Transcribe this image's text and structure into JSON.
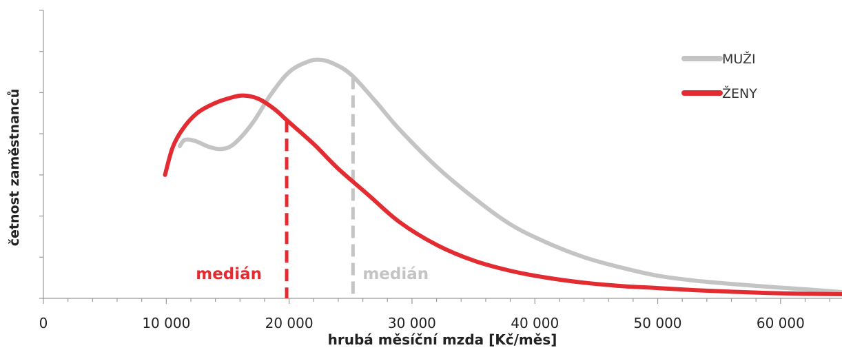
{
  "chart_data": {
    "type": "line",
    "xlabel": "hrubá měsíční mzda [Kč/měs]",
    "ylabel": "četnost zaměstnanců",
    "xlim": [
      0,
      65000
    ],
    "ylim": [
      0,
      7
    ],
    "x_ticks": [
      0,
      10000,
      20000,
      30000,
      40000,
      50000,
      60000
    ],
    "x_tick_labels": [
      "0",
      "10 000",
      "20 000",
      "30 000",
      "40 000",
      "50 000",
      "60 000"
    ],
    "y_tick_labels_shown": false,
    "grid": false,
    "legend_position": "top-right",
    "series": [
      {
        "name": "MUŽI",
        "color": "#c4c4c4",
        "x": [
          11100,
          11500,
          12300,
          13500,
          14500,
          15500,
          17000,
          18500,
          20000,
          21500,
          22500,
          23500,
          25000,
          27000,
          29000,
          32000,
          35000,
          38000,
          41000,
          44000,
          47000,
          50000,
          53000,
          56000,
          59000,
          62000,
          65000
        ],
        "y": [
          3.7,
          3.85,
          3.83,
          3.68,
          3.63,
          3.75,
          4.25,
          4.95,
          5.5,
          5.75,
          5.8,
          5.72,
          5.45,
          4.8,
          4.1,
          3.2,
          2.45,
          1.8,
          1.35,
          1.0,
          0.75,
          0.55,
          0.43,
          0.35,
          0.28,
          0.22,
          0.15
        ]
      },
      {
        "name": "ŽENY",
        "color": "#e32c31",
        "x": [
          9900,
          10500,
          11300,
          12500,
          14000,
          15300,
          16300,
          17500,
          18800,
          20000,
          22000,
          24000,
          26500,
          29000,
          32000,
          35000,
          38000,
          41000,
          44000,
          47000,
          50000,
          53000,
          56000,
          59000,
          62000,
          65000
        ],
        "y": [
          3.0,
          3.65,
          4.1,
          4.5,
          4.75,
          4.88,
          4.93,
          4.85,
          4.6,
          4.28,
          3.75,
          3.15,
          2.5,
          1.85,
          1.3,
          0.92,
          0.67,
          0.5,
          0.38,
          0.3,
          0.25,
          0.2,
          0.16,
          0.13,
          0.11,
          0.1
        ]
      }
    ],
    "medians": [
      {
        "series": "ŽENY",
        "x": 19800,
        "label": "medián",
        "color": "#e32c31"
      },
      {
        "series": "MUŽI",
        "x": 25200,
        "label": "medián",
        "color": "#c4c4c4"
      }
    ]
  }
}
